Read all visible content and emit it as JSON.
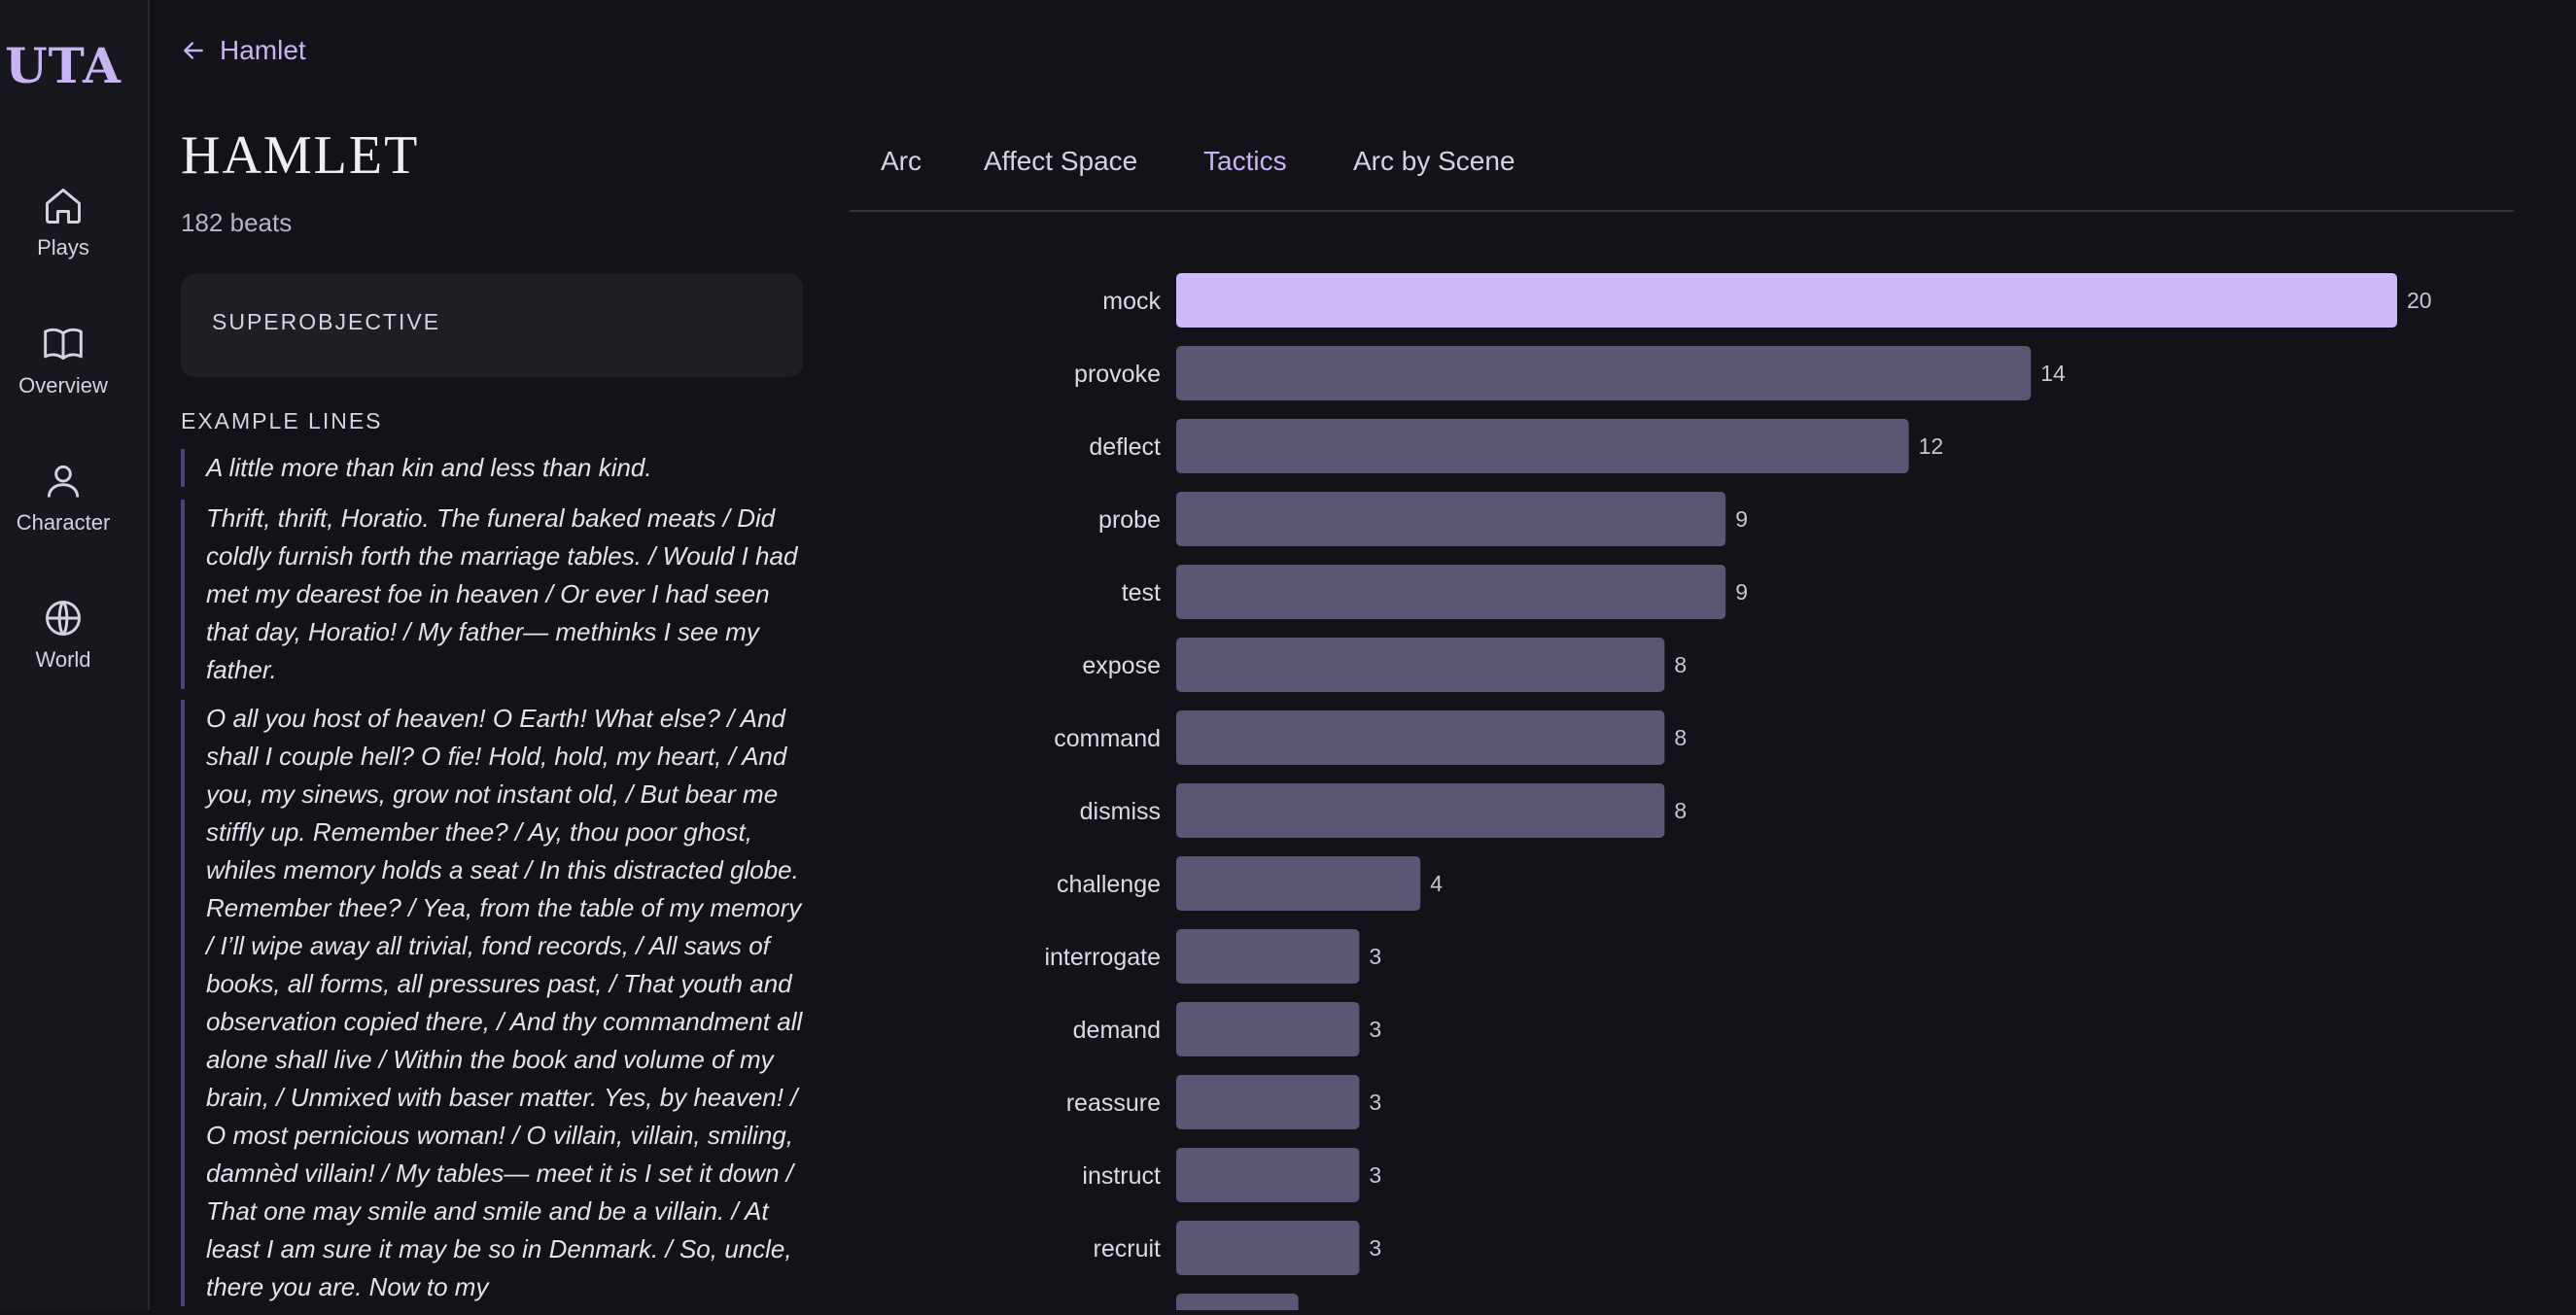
{
  "app": {
    "logo": "UTA"
  },
  "nav": [
    {
      "label": "Plays",
      "icon": "home-icon"
    },
    {
      "label": "Overview",
      "icon": "book-icon"
    },
    {
      "label": "Character",
      "icon": "person-icon"
    },
    {
      "label": "World",
      "icon": "globe-icon"
    }
  ],
  "header": {
    "back_label": "Hamlet",
    "title": "HAMLET",
    "beats": "182 beats"
  },
  "superobjective": {
    "label": "SUPEROBJECTIVE"
  },
  "examples": {
    "heading": "EXAMPLE LINES",
    "lines": [
      "A little more than kin and less than kind.",
      "Thrift, thrift, Horatio. The funeral baked meats / Did coldly furnish forth the marriage tables. / Would I had met my dearest foe in heaven / Or ever I had seen that day, Horatio! / My father— methinks I see my father.",
      "O all you host of heaven! O Earth! What else? / And shall I couple hell? O fie! Hold, hold, my heart, / And you, my sinews, grow not instant old, / But bear me stiffly up. Remember thee? / Ay, thou poor ghost, whiles memory holds a seat / In this distracted globe. Remember thee? / Yea, from the table of my memory / I’ll wipe away all trivial, fond records, / All saws of books, all forms, all pressures past, / That youth and observation copied there, / And thy commandment all alone shall live / Within the book and volume of my brain, / Unmixed with baser matter. Yes, by heaven! / O most pernicious woman! / O villain, villain, smiling, damnèd villain! / My tables— meet it is I set it down / That one may smile and smile and be a villain. / At least I am sure it may be so in Denmark. / So, uncle, there you are. Now to my"
    ]
  },
  "tabs": [
    {
      "label": "Arc"
    },
    {
      "label": "Affect Space"
    },
    {
      "label": "Tactics"
    },
    {
      "label": "Arc by Scene"
    }
  ],
  "active_tab": "Tactics",
  "colors": {
    "accent": "#c7b4f5",
    "bar": "#5d5574",
    "bar_highlight": "#cdb9fb"
  },
  "chart_data": {
    "type": "bar",
    "orientation": "horizontal",
    "categories": [
      "mock",
      "provoke",
      "deflect",
      "probe",
      "test",
      "expose",
      "command",
      "dismiss",
      "challenge",
      "interrogate",
      "demand",
      "reassure",
      "instruct",
      "recruit",
      ""
    ],
    "values": [
      20,
      14,
      12,
      9,
      9,
      8,
      8,
      8,
      4,
      3,
      3,
      3,
      3,
      3,
      2
    ],
    "xlim": [
      0,
      20
    ],
    "grid": false,
    "highlight_index": 0,
    "data_labels": true
  }
}
